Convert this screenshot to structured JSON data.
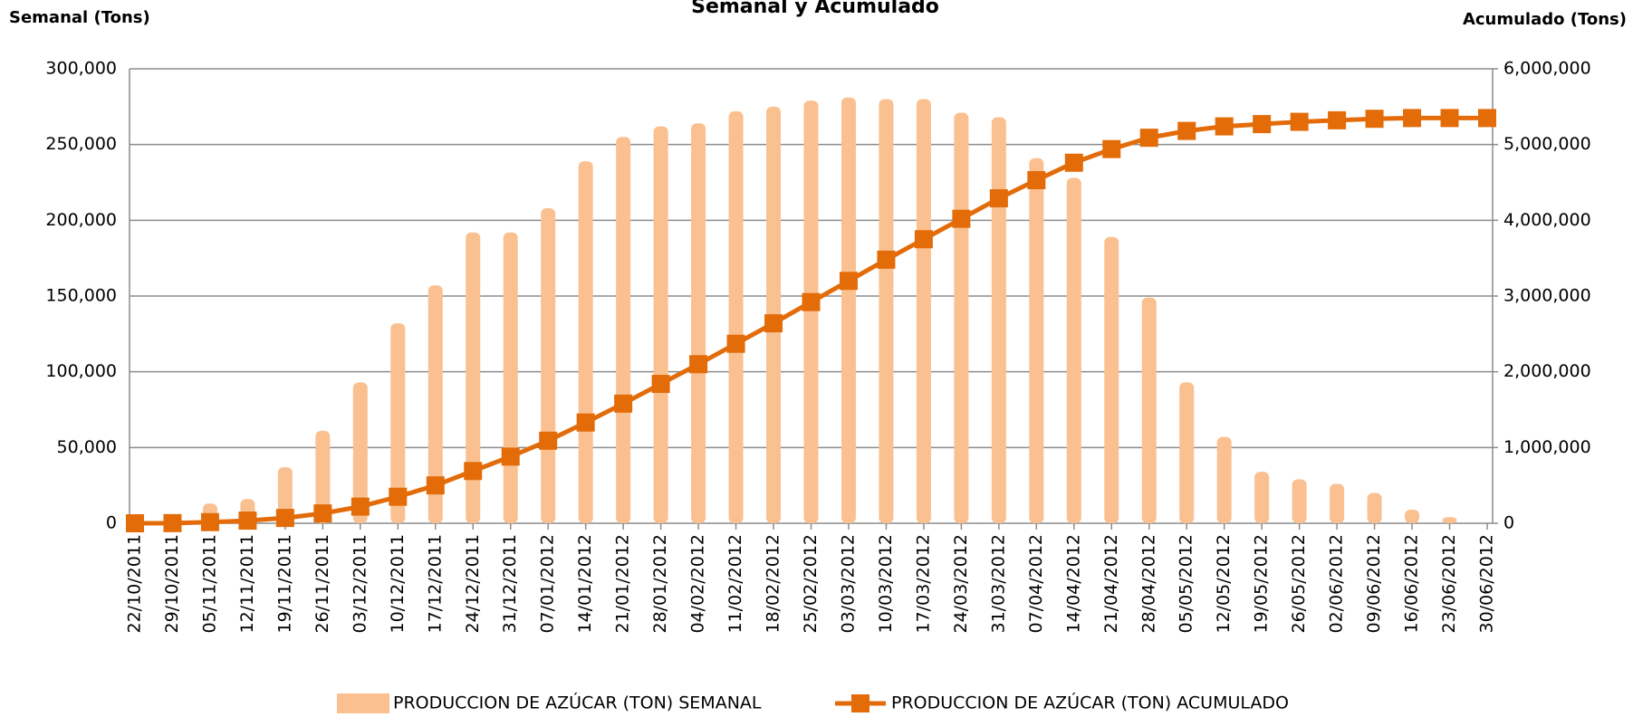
{
  "chart_data": {
    "type": "bar-line",
    "title": "Semanal y Acumulado",
    "y_label": "Semanal (Tons)",
    "y2_label": "Acumulado (Tons)",
    "categories": [
      "22/10/2011",
      "29/10/2011",
      "05/11/2011",
      "12/11/2011",
      "19/11/2011",
      "26/11/2011",
      "03/12/2011",
      "10/12/2011",
      "17/12/2011",
      "24/12/2011",
      "31/12/2011",
      "07/01/2012",
      "14/01/2012",
      "21/01/2012",
      "28/01/2012",
      "04/02/2012",
      "11/02/2012",
      "18/02/2012",
      "25/02/2012",
      "03/03/2012",
      "10/03/2012",
      "17/03/2012",
      "24/03/2012",
      "31/03/2012",
      "07/04/2012",
      "14/04/2012",
      "21/04/2012",
      "28/04/2012",
      "05/05/2012",
      "12/05/2012",
      "19/05/2012",
      "26/05/2012",
      "02/06/2012",
      "09/06/2012",
      "16/06/2012",
      "23/06/2012",
      "30/06/2012"
    ],
    "series": [
      {
        "name": "PRODUCCION DE AZÚCAR (TON) SEMANAL",
        "color": "#fac090",
        "kind": "bar",
        "values": [
          0,
          1000,
          13000,
          16000,
          37000,
          61000,
          93000,
          132000,
          157000,
          192000,
          192000,
          208000,
          239000,
          255000,
          262000,
          264000,
          272000,
          275000,
          279000,
          281000,
          280000,
          280000,
          271000,
          268000,
          241000,
          228000,
          189000,
          149000,
          93000,
          57000,
          34000,
          29000,
          26000,
          20000,
          9000,
          4000,
          0
        ]
      },
      {
        "name": "PRODUCCION DE AZÚCAR (TON) ACUMULADO",
        "color": "#e36c09",
        "kind": "line",
        "axis": "y2",
        "values": [
          0,
          2000,
          15000,
          35000,
          70000,
          130000,
          220000,
          350000,
          500000,
          690000,
          880000,
          1090000,
          1330000,
          1580000,
          1840000,
          2100000,
          2370000,
          2640000,
          2920000,
          3200000,
          3480000,
          3750000,
          4020000,
          4290000,
          4530000,
          4760000,
          4940000,
          5090000,
          5180000,
          5240000,
          5270000,
          5300000,
          5320000,
          5340000,
          5350000,
          5350000,
          5350000
        ]
      }
    ],
    "ylim": [
      0,
      300000
    ],
    "yticks": [
      0,
      {
        "value": 50000,
        "label": "50,000"
      },
      {
        "value": 100000,
        "label": "100,000"
      },
      {
        "value": 150000,
        "label": "150,000"
      },
      {
        "value": 200000,
        "label": "200,000"
      },
      {
        "value": 250000,
        "label": "250,000"
      },
      {
        "value": 300000,
        "label": "300,000"
      }
    ],
    "y2lim": [
      0,
      6000000
    ],
    "y2ticks": [
      0,
      {
        "value": 1000000,
        "label": "1,000,000"
      },
      {
        "value": 2000000,
        "label": "2,000,000"
      },
      {
        "value": 3000000,
        "label": "3,000,000"
      },
      {
        "value": 4000000,
        "label": "4,000,000"
      },
      {
        "value": 5000000,
        "label": "5,000,000"
      },
      {
        "value": 6000000,
        "label": "6,000,000"
      }
    ],
    "grid": true,
    "legend": "bottom"
  }
}
